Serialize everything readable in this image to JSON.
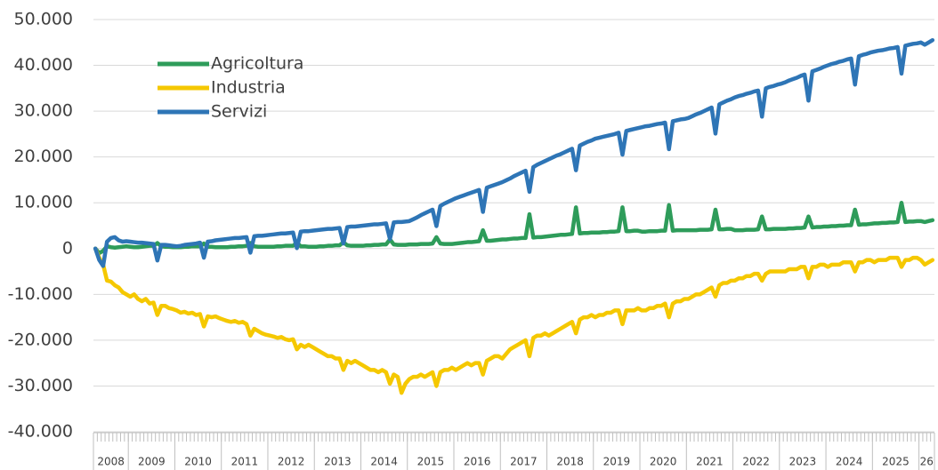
{
  "chart_data": {
    "type": "line",
    "categories": [
      "2008",
      null,
      null,
      null,
      null,
      null,
      null,
      null,
      null,
      "2009",
      null,
      null,
      null,
      null,
      null,
      null,
      null,
      null,
      null,
      null,
      null,
      "2010",
      null,
      null,
      null,
      null,
      null,
      null,
      null,
      null,
      null,
      null,
      null,
      "2011",
      null,
      null,
      null,
      null,
      null,
      null,
      null,
      null,
      null,
      null,
      null,
      "2012",
      null,
      null,
      null,
      null,
      null,
      null,
      null,
      null,
      null,
      null,
      null,
      "2013",
      null,
      null,
      null,
      null,
      null,
      null,
      null,
      null,
      null,
      null,
      null,
      "2014",
      null,
      null,
      null,
      null,
      null,
      null,
      null,
      null,
      null,
      null,
      null,
      "2015",
      null,
      null,
      null,
      null,
      null,
      null,
      null,
      null,
      null,
      null,
      null,
      "2016",
      null,
      null,
      null,
      null,
      null,
      null,
      null,
      null,
      null,
      null,
      null,
      "2017",
      null,
      null,
      null,
      null,
      null,
      null,
      null,
      null,
      null,
      null,
      null,
      "2018",
      null,
      null,
      null,
      null,
      null,
      null,
      null,
      null,
      null,
      null,
      null,
      "2019",
      null,
      null,
      null,
      null,
      null,
      null,
      null,
      null,
      null,
      null,
      null,
      "2020",
      null,
      null,
      null,
      null,
      null,
      null,
      null,
      null,
      null,
      null,
      null,
      "2021",
      null,
      null,
      null,
      null,
      null,
      null,
      null,
      null,
      null,
      null,
      null,
      "2022",
      null,
      null,
      null,
      null,
      null,
      null,
      null,
      null,
      null,
      null,
      null,
      "2023",
      null,
      null,
      null,
      null,
      null,
      null,
      null,
      null,
      null,
      null,
      null,
      "2024",
      null,
      null,
      null,
      null,
      null,
      null,
      null,
      null,
      null,
      null,
      null,
      "2025",
      null,
      null,
      null,
      null,
      null,
      null,
      null,
      null,
      null,
      null,
      null,
      "26",
      null,
      null,
      null
    ],
    "series": [
      {
        "name": "Agricoltura",
        "color": "#2e9c5a",
        "values": [
          0,
          -1000,
          -500,
          500,
          300,
          200,
          300,
          400,
          500,
          400,
          300,
          300,
          400,
          500,
          600,
          600,
          1200,
          500,
          400,
          400,
          300,
          300,
          300,
          400,
          400,
          500,
          500,
          500,
          1100,
          400,
          400,
          300,
          300,
          300,
          300,
          400,
          400,
          500,
          500,
          600,
          1200,
          500,
          400,
          400,
          400,
          400,
          400,
          500,
          500,
          600,
          600,
          600,
          1300,
          500,
          500,
          400,
          400,
          400,
          500,
          500,
          600,
          600,
          700,
          700,
          1400,
          700,
          600,
          600,
          600,
          600,
          700,
          700,
          800,
          800,
          900,
          900,
          2000,
          900,
          800,
          800,
          800,
          900,
          900,
          900,
          1000,
          1000,
          1000,
          1100,
          2500,
          1100,
          1000,
          1000,
          1000,
          1100,
          1200,
          1300,
          1400,
          1400,
          1500,
          1600,
          4000,
          1700,
          1700,
          1800,
          1900,
          2000,
          2000,
          2100,
          2200,
          2200,
          2300,
          2300,
          7500,
          2400,
          2500,
          2500,
          2600,
          2700,
          2800,
          2900,
          3000,
          3000,
          3100,
          3200,
          9000,
          3300,
          3400,
          3400,
          3500,
          3500,
          3500,
          3600,
          3600,
          3700,
          3700,
          3800,
          9000,
          3800,
          3800,
          3900,
          3900,
          3700,
          3700,
          3800,
          3800,
          3800,
          3900,
          3900,
          9500,
          3900,
          4000,
          4000,
          4000,
          4000,
          4000,
          4000,
          4100,
          4100,
          4100,
          4200,
          8500,
          4200,
          4200,
          4300,
          4300,
          4000,
          4000,
          4000,
          4100,
          4100,
          4100,
          4200,
          7000,
          4200,
          4200,
          4300,
          4300,
          4300,
          4300,
          4400,
          4400,
          4500,
          4500,
          4600,
          7000,
          4600,
          4700,
          4700,
          4800,
          4800,
          4900,
          4900,
          5000,
          5000,
          5100,
          5100,
          8500,
          5200,
          5300,
          5300,
          5400,
          5500,
          5500,
          5600,
          5600,
          5700,
          5700,
          5800,
          10000,
          5800,
          5900,
          5900,
          6000,
          6000,
          5800,
          6000,
          6200
        ]
      },
      {
        "name": "Industria",
        "color": "#f5c800",
        "values": [
          0,
          -2000,
          -3500,
          -7000,
          -7200,
          -8000,
          -8500,
          -9500,
          -10000,
          -10500,
          -10000,
          -11000,
          -11500,
          -11000,
          -12000,
          -11800,
          -14500,
          -12500,
          -12500,
          -13000,
          -13200,
          -13500,
          -14000,
          -13800,
          -14200,
          -14000,
          -14500,
          -14300,
          -17000,
          -14800,
          -15000,
          -14800,
          -15200,
          -15500,
          -15800,
          -16000,
          -15800,
          -16200,
          -16000,
          -16500,
          -19000,
          -17500,
          -18000,
          -18500,
          -18800,
          -19000,
          -19200,
          -19500,
          -19300,
          -19800,
          -20000,
          -19800,
          -22000,
          -21000,
          -21500,
          -21000,
          -21500,
          -22000,
          -22500,
          -23000,
          -23500,
          -23500,
          -24000,
          -24000,
          -26500,
          -24500,
          -25000,
          -24500,
          -25000,
          -25500,
          -26000,
          -26500,
          -26500,
          -27000,
          -26500,
          -27000,
          -29500,
          -27500,
          -28000,
          -31500,
          -29500,
          -28500,
          -28000,
          -28000,
          -27500,
          -28000,
          -27500,
          -27000,
          -30000,
          -27000,
          -26500,
          -26500,
          -26000,
          -26500,
          -26000,
          -25500,
          -25000,
          -25500,
          -25000,
          -25000,
          -27500,
          -24500,
          -24000,
          -23500,
          -23500,
          -24000,
          -23000,
          -22000,
          -21500,
          -21000,
          -20500,
          -20000,
          -23500,
          -19500,
          -19000,
          -19000,
          -18500,
          -19000,
          -18500,
          -18000,
          -17500,
          -17000,
          -16500,
          -16000,
          -18500,
          -15500,
          -15000,
          -15000,
          -14500,
          -15000,
          -14500,
          -14500,
          -14000,
          -14000,
          -13500,
          -13500,
          -16500,
          -13500,
          -13500,
          -13500,
          -13000,
          -13500,
          -13500,
          -13000,
          -13000,
          -12500,
          -12500,
          -12000,
          -15000,
          -12000,
          -11500,
          -11500,
          -11000,
          -11000,
          -10500,
          -10000,
          -10000,
          -9500,
          -9000,
          -8500,
          -10500,
          -8000,
          -7500,
          -7500,
          -7000,
          -7000,
          -6500,
          -6500,
          -6000,
          -6000,
          -5500,
          -5500,
          -7000,
          -5500,
          -5000,
          -5000,
          -5000,
          -5000,
          -5000,
          -4500,
          -4500,
          -4500,
          -4000,
          -4000,
          -6500,
          -4000,
          -4000,
          -3500,
          -3500,
          -4000,
          -3500,
          -3500,
          -3500,
          -3000,
          -3000,
          -3000,
          -5000,
          -3000,
          -3000,
          -2500,
          -2500,
          -3000,
          -2500,
          -2500,
          -2500,
          -2000,
          -2000,
          -2000,
          -4000,
          -2500,
          -2500,
          -2000,
          -2000,
          -2500,
          -3500,
          -3000,
          -2500
        ]
      },
      {
        "name": "Servizi",
        "color": "#2e75b6",
        "values": [
          0,
          -2500,
          -3800,
          1500,
          2300,
          2500,
          1800,
          1500,
          1600,
          1500,
          1400,
          1300,
          1300,
          1200,
          1100,
          1000,
          -2600,
          800,
          800,
          700,
          600,
          500,
          600,
          800,
          900,
          1000,
          1100,
          1300,
          -2000,
          1500,
          1600,
          1800,
          1900,
          2000,
          2100,
          2200,
          2300,
          2300,
          2400,
          2500,
          -900,
          2700,
          2800,
          2800,
          2900,
          3000,
          3100,
          3200,
          3300,
          3300,
          3400,
          3500,
          100,
          3700,
          3800,
          3800,
          3900,
          4000,
          4100,
          4200,
          4300,
          4300,
          4400,
          4500,
          1100,
          4700,
          4800,
          4800,
          4900,
          5000,
          5100,
          5200,
          5300,
          5300,
          5400,
          5500,
          2100,
          5700,
          5800,
          5800,
          5900,
          6000,
          6400,
          6800,
          7300,
          7700,
          8100,
          8500,
          4900,
          9300,
          9800,
          10200,
          10600,
          11000,
          11300,
          11600,
          11900,
          12200,
          12500,
          12800,
          8000,
          13300,
          13600,
          13900,
          14200,
          14500,
          14900,
          15300,
          15800,
          16200,
          16600,
          17000,
          12400,
          17800,
          18300,
          18700,
          19100,
          19500,
          19900,
          20300,
          20600,
          21000,
          21400,
          21800,
          17100,
          22500,
          22900,
          23300,
          23600,
          24000,
          24200,
          24400,
          24600,
          24800,
          25000,
          25300,
          20500,
          25700,
          25900,
          26100,
          26300,
          26500,
          26700,
          26800,
          27000,
          27200,
          27300,
          27500,
          21700,
          27800,
          28000,
          28200,
          28300,
          28500,
          28900,
          29300,
          29600,
          30000,
          30400,
          30800,
          25100,
          31500,
          31900,
          32300,
          32600,
          33000,
          33300,
          33500,
          33800,
          34000,
          34300,
          34500,
          28800,
          35000,
          35300,
          35500,
          35800,
          36000,
          36300,
          36700,
          37000,
          37300,
          37700,
          38000,
          32300,
          38700,
          39000,
          39300,
          39700,
          40000,
          40300,
          40500,
          40800,
          41000,
          41300,
          41500,
          35800,
          42000,
          42300,
          42500,
          42800,
          43000,
          43200,
          43300,
          43500,
          43700,
          43800,
          44000,
          38200,
          44300,
          44500,
          44700,
          44800,
          45000,
          44500,
          45000,
          45500
        ]
      }
    ],
    "ylim": [
      -40000,
      50000
    ],
    "yticks": [
      {
        "value": -40000,
        "label": "-40.000"
      },
      {
        "value": -30000,
        "label": "-30.000"
      },
      {
        "value": -20000,
        "label": "-20.000"
      },
      {
        "value": -10000,
        "label": "-10.000"
      },
      0,
      {
        "value": 10000,
        "label": "10.000"
      },
      {
        "value": 20000,
        "label": "20.000"
      },
      {
        "value": 30000,
        "label": "30.000"
      },
      {
        "value": 40000,
        "label": "40.000"
      },
      {
        "value": 50000,
        "label": "50.000"
      }
    ],
    "grid": true,
    "legend": "top-left"
  }
}
